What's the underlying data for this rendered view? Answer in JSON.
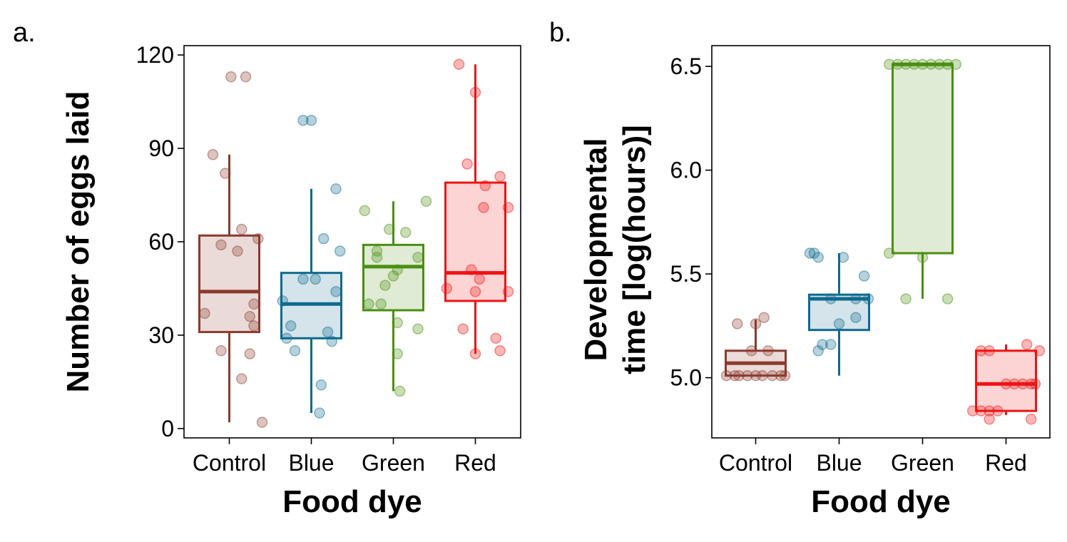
{
  "colors": {
    "Control": "#8b3a2e",
    "Blue": "#0e6a8d",
    "Green": "#4b8e12",
    "Red": "#ef1313"
  },
  "chart_data": [
    {
      "type": "box",
      "panel_label": "a.",
      "xlabel": "Food dye",
      "ylabel": "Number of eggs laid",
      "categories": [
        "Control",
        "Blue",
        "Green",
        "Red"
      ],
      "ylim": [
        -3,
        123
      ],
      "yticks": [
        0,
        30,
        60,
        90,
        120
      ],
      "ytick_labels": [
        "0",
        "30",
        "60",
        "90",
        "120"
      ],
      "boxes": [
        {
          "category": "Control",
          "whisker_low": 2,
          "q1": 31,
          "median": 44,
          "q3": 62,
          "whisker_high": 88
        },
        {
          "category": "Blue",
          "whisker_low": 5,
          "q1": 29,
          "median": 40,
          "q3": 50,
          "whisker_high": 77
        },
        {
          "category": "Green",
          "whisker_low": 12,
          "q1": 38,
          "median": 52,
          "q3": 59,
          "whisker_high": 73
        },
        {
          "category": "Red",
          "whisker_low": 24,
          "q1": 41,
          "median": 50,
          "q3": 79,
          "whisker_high": 117
        }
      ],
      "points": [
        {
          "category": "Control",
          "jitter": [
            0.02,
            0.2,
            -0.05,
            -0.2,
            -0.1,
            0.15,
            -0.3,
            0.1,
            0.35,
            0.3,
            0.25,
            0.3,
            -0.1,
            0.15,
            0.25,
            0.4
          ],
          "values": [
            113,
            113,
            82,
            88,
            59,
            64,
            37,
            57,
            61,
            40,
            36,
            33,
            25,
            16,
            24,
            2
          ]
        },
        {
          "category": "Blue",
          "jitter": [
            -0.1,
            0.0,
            -0.35,
            -0.25,
            0.3,
            0.15,
            0.35,
            0.3,
            -0.2,
            -0.3,
            -0.1,
            0.05,
            0.2,
            0.25,
            0.12,
            0.1
          ],
          "values": [
            99,
            99,
            41,
            33,
            77,
            61,
            57,
            44,
            25,
            29,
            48,
            48,
            31,
            28,
            14,
            5
          ]
        },
        {
          "category": "Green",
          "jitter": [
            -0.35,
            -0.2,
            -0.05,
            0.15,
            0.4,
            -0.2,
            -0.1,
            0.0,
            0.05,
            0.3,
            -0.15,
            -0.3,
            0.05,
            0.05,
            0.3,
            0.08
          ],
          "values": [
            70,
            57,
            64,
            63,
            73,
            55,
            46,
            49,
            51,
            55,
            40,
            40,
            34,
            24,
            32,
            12
          ]
        },
        {
          "category": "Red",
          "jitter": [
            -0.2,
            0.0,
            -0.1,
            0.3,
            0.12,
            0.1,
            0.4,
            -0.05,
            0.05,
            -0.35,
            0.0,
            0.4,
            -0.15,
            0.25,
            0.3,
            0.0
          ],
          "values": [
            117,
            108,
            85,
            81,
            78,
            71,
            71,
            51,
            48,
            45,
            44,
            44,
            32,
            29,
            25,
            24
          ]
        }
      ]
    },
    {
      "type": "box",
      "panel_label": "b.",
      "xlabel": "Food dye",
      "ylabel": "Developmental time [log(hours)]",
      "ylabel_lines": [
        "Developmental",
        "time [log(hours)]"
      ],
      "categories": [
        "Control",
        "Blue",
        "Green",
        "Red"
      ],
      "ylim": [
        4.71,
        6.6
      ],
      "yticks": [
        5.0,
        5.5,
        6.0,
        6.5
      ],
      "ytick_labels": [
        "5.0",
        "5.5",
        "6.0",
        "6.5"
      ],
      "boxes": [
        {
          "category": "Control",
          "whisker_low": 5.01,
          "q1": 5.01,
          "median": 5.07,
          "q3": 5.13,
          "whisker_high": 5.28
        },
        {
          "category": "Blue",
          "whisker_low": 5.01,
          "q1": 5.23,
          "median": 5.38,
          "q3": 5.4,
          "whisker_high": 5.6
        },
        {
          "category": "Green",
          "whisker_low": 5.38,
          "q1": 5.6,
          "median": 6.51,
          "q3": 6.51,
          "whisker_high": 6.51
        },
        {
          "category": "Red",
          "whisker_low": 4.82,
          "q1": 4.84,
          "median": 4.97,
          "q3": 5.13,
          "whisker_high": 5.16
        }
      ],
      "points": [
        {
          "category": "Control",
          "jitter": [
            -0.35,
            -0.25,
            -0.2,
            -0.1,
            0.0,
            0.08,
            0.2,
            0.3,
            0.35,
            -0.22,
            0.1,
            0.0,
            -0.05,
            0.15
          ],
          "values": [
            5.01,
            5.01,
            5.01,
            5.01,
            5.01,
            5.01,
            5.01,
            5.01,
            5.01,
            5.26,
            5.29,
            5.26,
            5.13,
            5.13
          ]
        },
        {
          "category": "Blue",
          "jitter": [
            -0.3,
            -0.25,
            0.05,
            -0.35,
            0.3,
            0.35,
            0.2,
            -0.1,
            0.2,
            -0.25,
            -0.1,
            0.0,
            -0.2
          ],
          "values": [
            5.6,
            5.58,
            5.58,
            5.6,
            5.49,
            5.38,
            5.38,
            5.38,
            5.29,
            5.13,
            5.16,
            5.26,
            5.16
          ]
        },
        {
          "category": "Green",
          "jitter": [
            -0.4,
            -0.3,
            -0.2,
            -0.1,
            0.0,
            0.1,
            0.2,
            0.3,
            0.4,
            -0.4,
            -0.2,
            0.3,
            0.0
          ],
          "values": [
            6.51,
            6.51,
            6.51,
            6.51,
            6.51,
            6.51,
            6.51,
            6.51,
            6.51,
            5.6,
            5.38,
            5.38,
            5.58
          ]
        },
        {
          "category": "Red",
          "jitter": [
            -0.4,
            -0.3,
            -0.2,
            -0.1,
            0.0,
            0.1,
            0.2,
            0.3,
            0.4,
            -0.3,
            -0.2,
            0.25,
            0.35,
            -0.2,
            0.3
          ],
          "values": [
            4.84,
            4.84,
            4.84,
            4.84,
            4.97,
            4.97,
            4.97,
            4.97,
            5.13,
            5.13,
            5.13,
            5.16,
            4.97,
            4.8,
            4.8
          ]
        }
      ]
    }
  ]
}
